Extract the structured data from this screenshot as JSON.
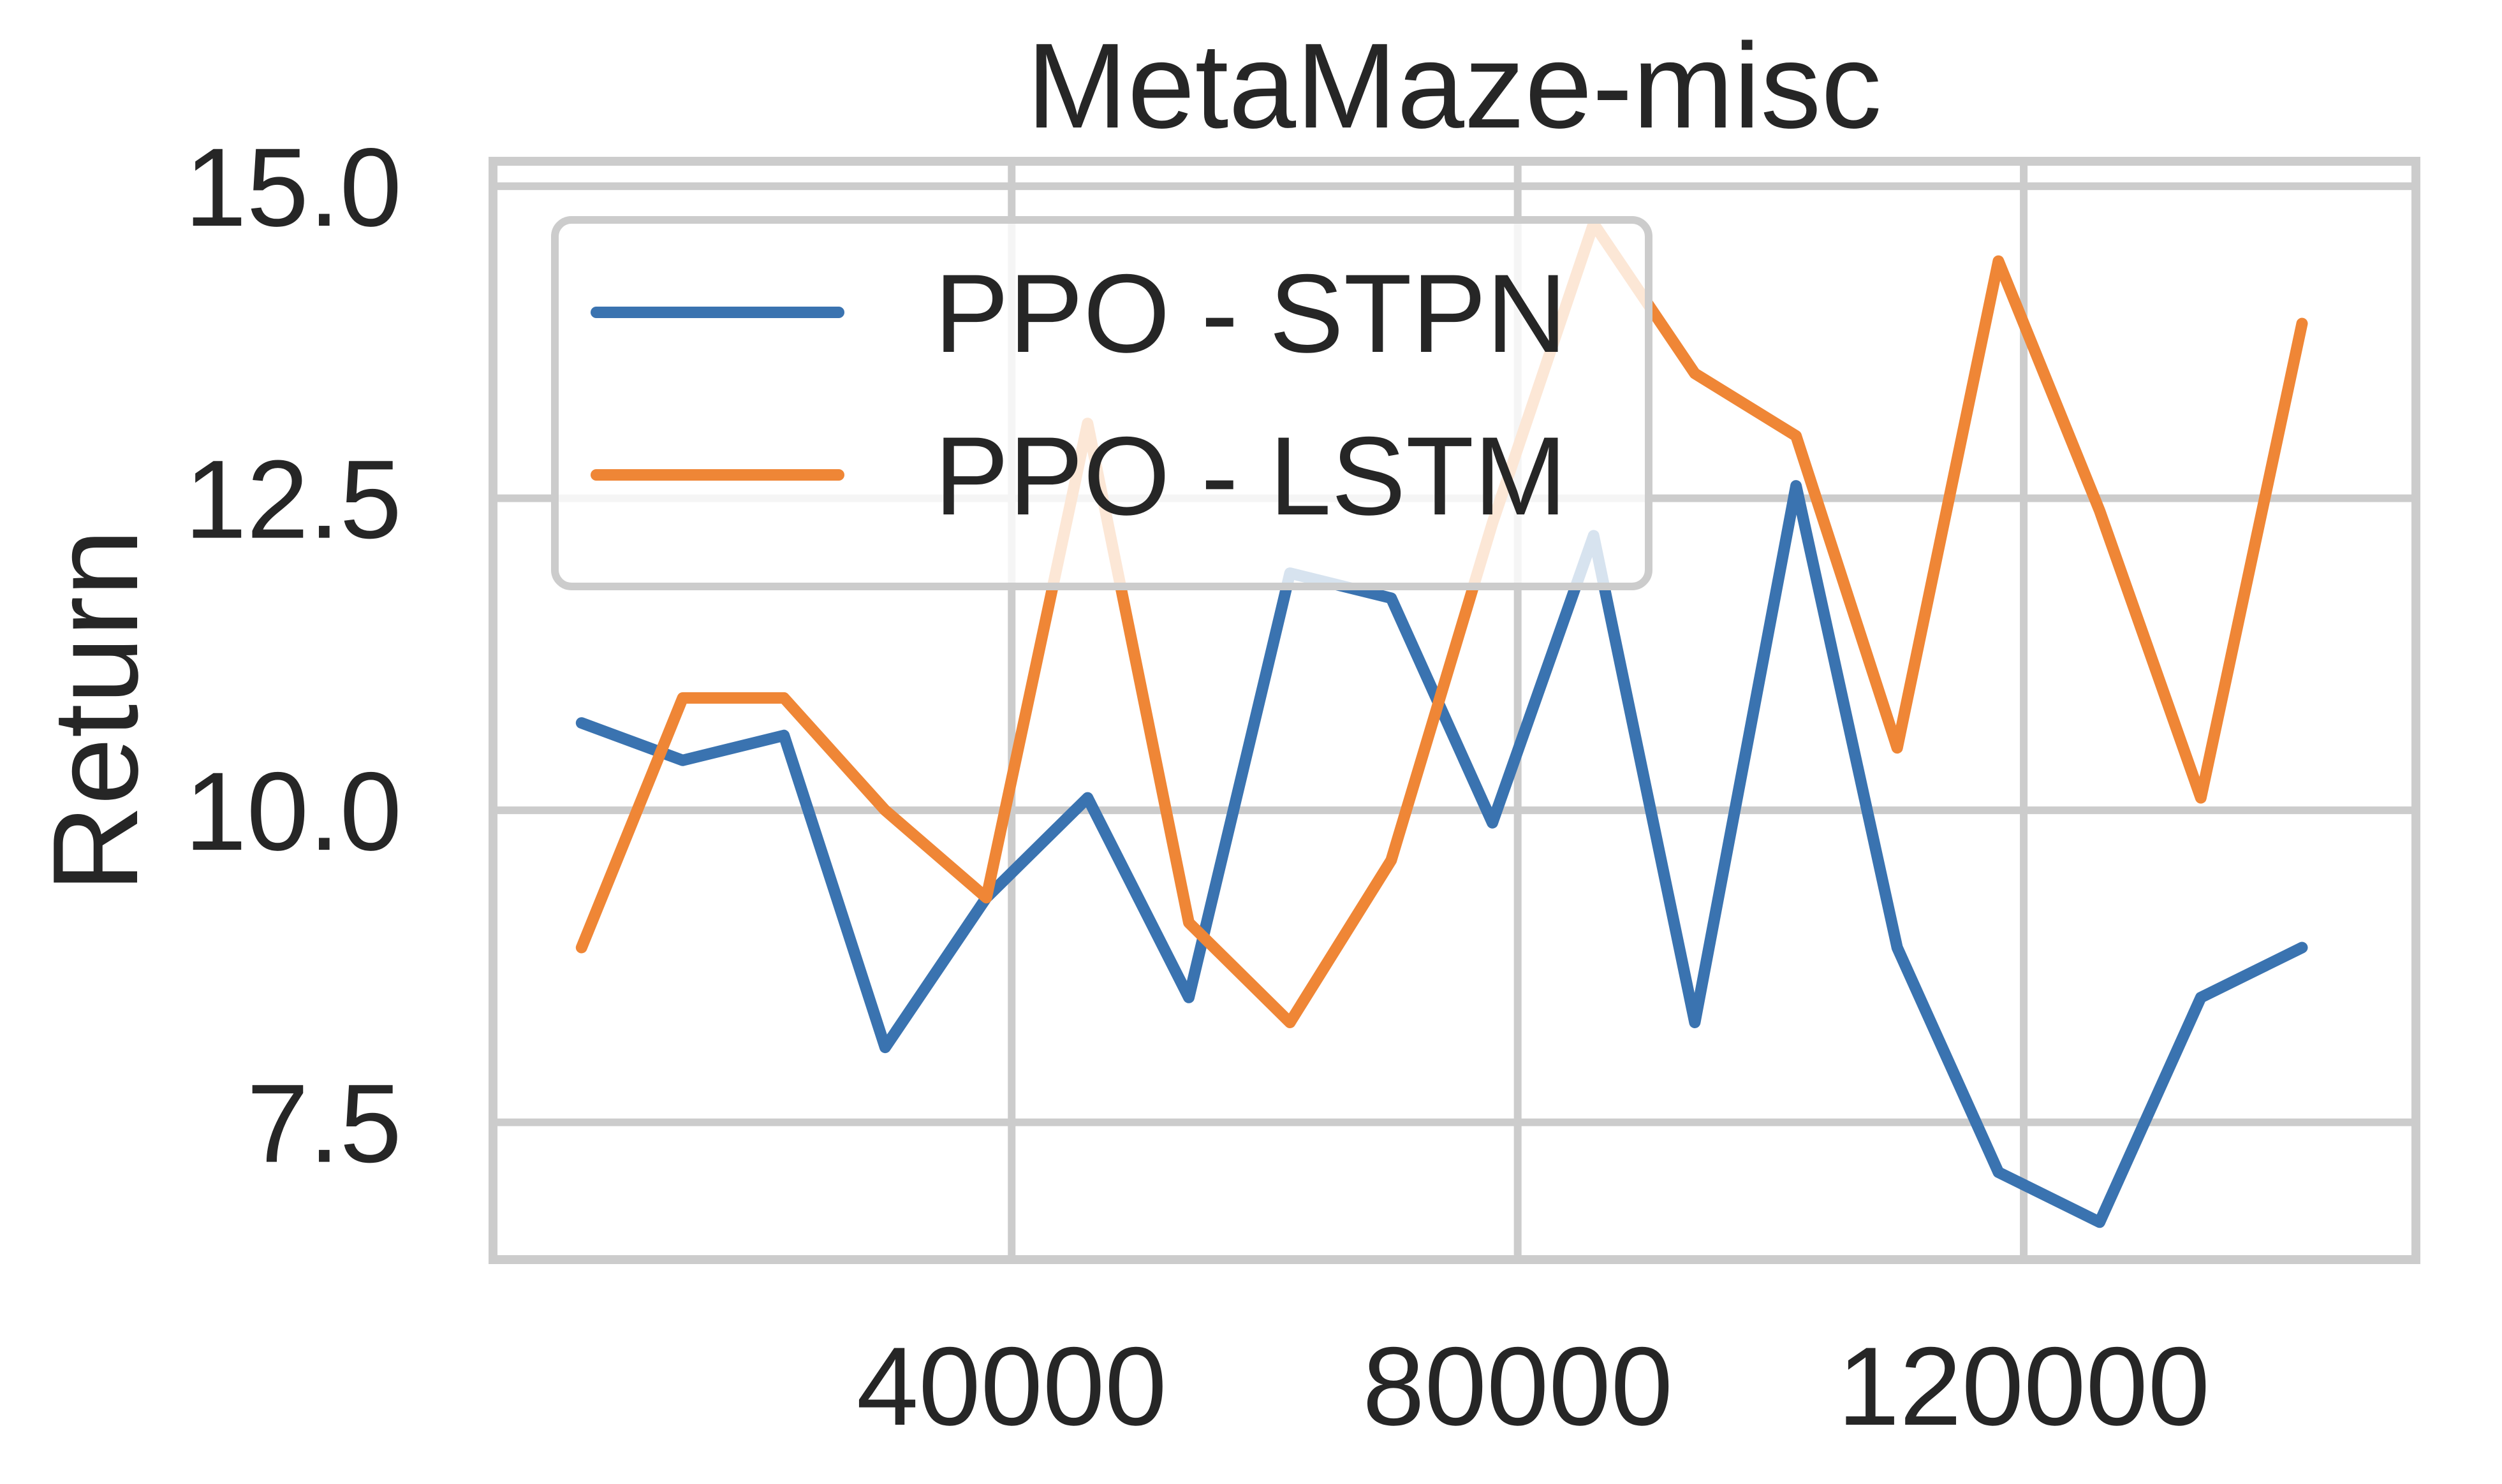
{
  "chart_data": {
    "type": "line",
    "title": "MetaMaze-misc",
    "xlabel": "",
    "ylabel": "Return",
    "xlim": [
      -1000,
      151000
    ],
    "ylim": [
      6.4,
      15.2
    ],
    "xticks": [
      40000,
      80000,
      120000
    ],
    "xtick_labels": [
      "40000",
      "80000",
      "120000"
    ],
    "yticks": [
      7.5,
      10.0,
      12.5,
      15.0
    ],
    "ytick_labels": [
      "7.5",
      "10.0",
      "12.5",
      "15.0"
    ],
    "grid": true,
    "legend_position": "upper-left",
    "x": [
      6000,
      14000,
      22000,
      30000,
      38000,
      46000,
      54000,
      62000,
      70000,
      78000,
      86000,
      94000,
      102000,
      110000,
      118000,
      126000,
      134000,
      142000
    ],
    "series": [
      {
        "name": "PPO - STPN",
        "color": "#3a73b0",
        "values": [
          10.7,
          10.4,
          10.6,
          8.1,
          9.3,
          10.1,
          8.5,
          11.9,
          11.7,
          9.9,
          12.2,
          8.3,
          12.6,
          8.9,
          7.1,
          6.7,
          8.5,
          8.9
        ]
      },
      {
        "name": "PPO - LSTM",
        "color": "#ef8636",
        "values": [
          8.9,
          10.9,
          10.9,
          10.0,
          9.3,
          13.1,
          9.1,
          8.3,
          9.6,
          12.3,
          14.7,
          13.5,
          13.0,
          10.5,
          14.4,
          12.4,
          10.1,
          13.9
        ]
      }
    ]
  }
}
